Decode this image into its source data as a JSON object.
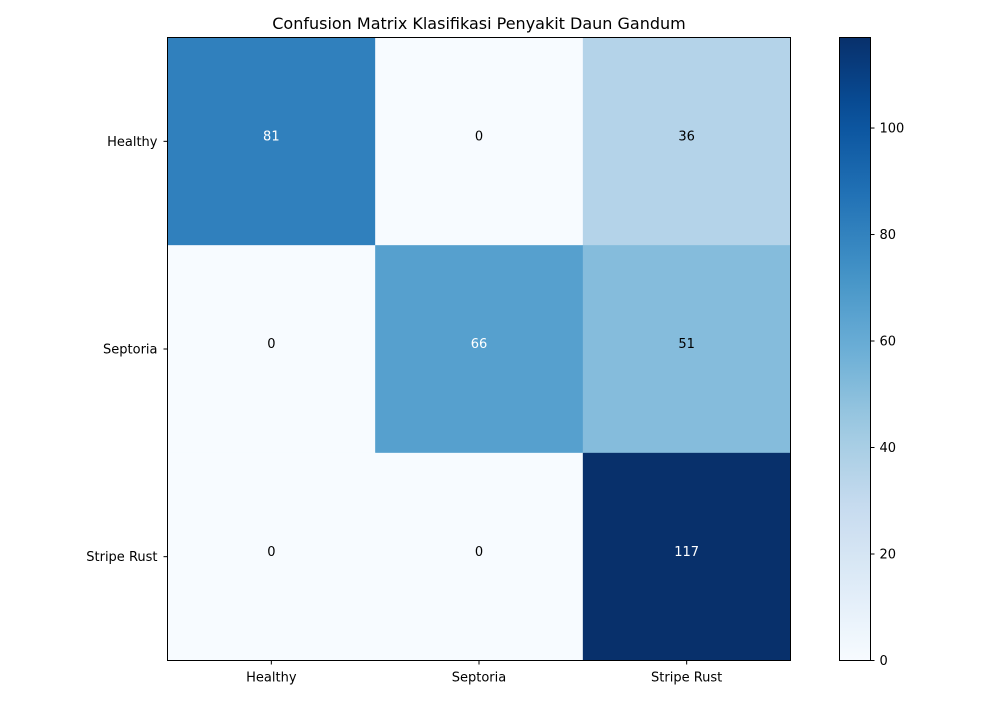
{
  "chart_data": {
    "type": "heatmap",
    "title": "Confusion Matrix Klasifikasi Penyakit Daun Gandum",
    "rows": [
      "Healthy",
      "Septoria",
      "Stripe Rust"
    ],
    "cols": [
      "Healthy",
      "Septoria",
      "Stripe Rust"
    ],
    "values": [
      [
        81,
        0,
        36
      ],
      [
        0,
        66,
        51
      ],
      [
        0,
        0,
        117
      ]
    ],
    "colormap": "Blues",
    "vmin": 0,
    "vmax": 117,
    "colorbar_ticks": [
      0,
      20,
      40,
      60,
      80,
      100
    ],
    "text_color_dark": "#000000",
    "text_color_light": "#ffffff",
    "grid": false
  }
}
